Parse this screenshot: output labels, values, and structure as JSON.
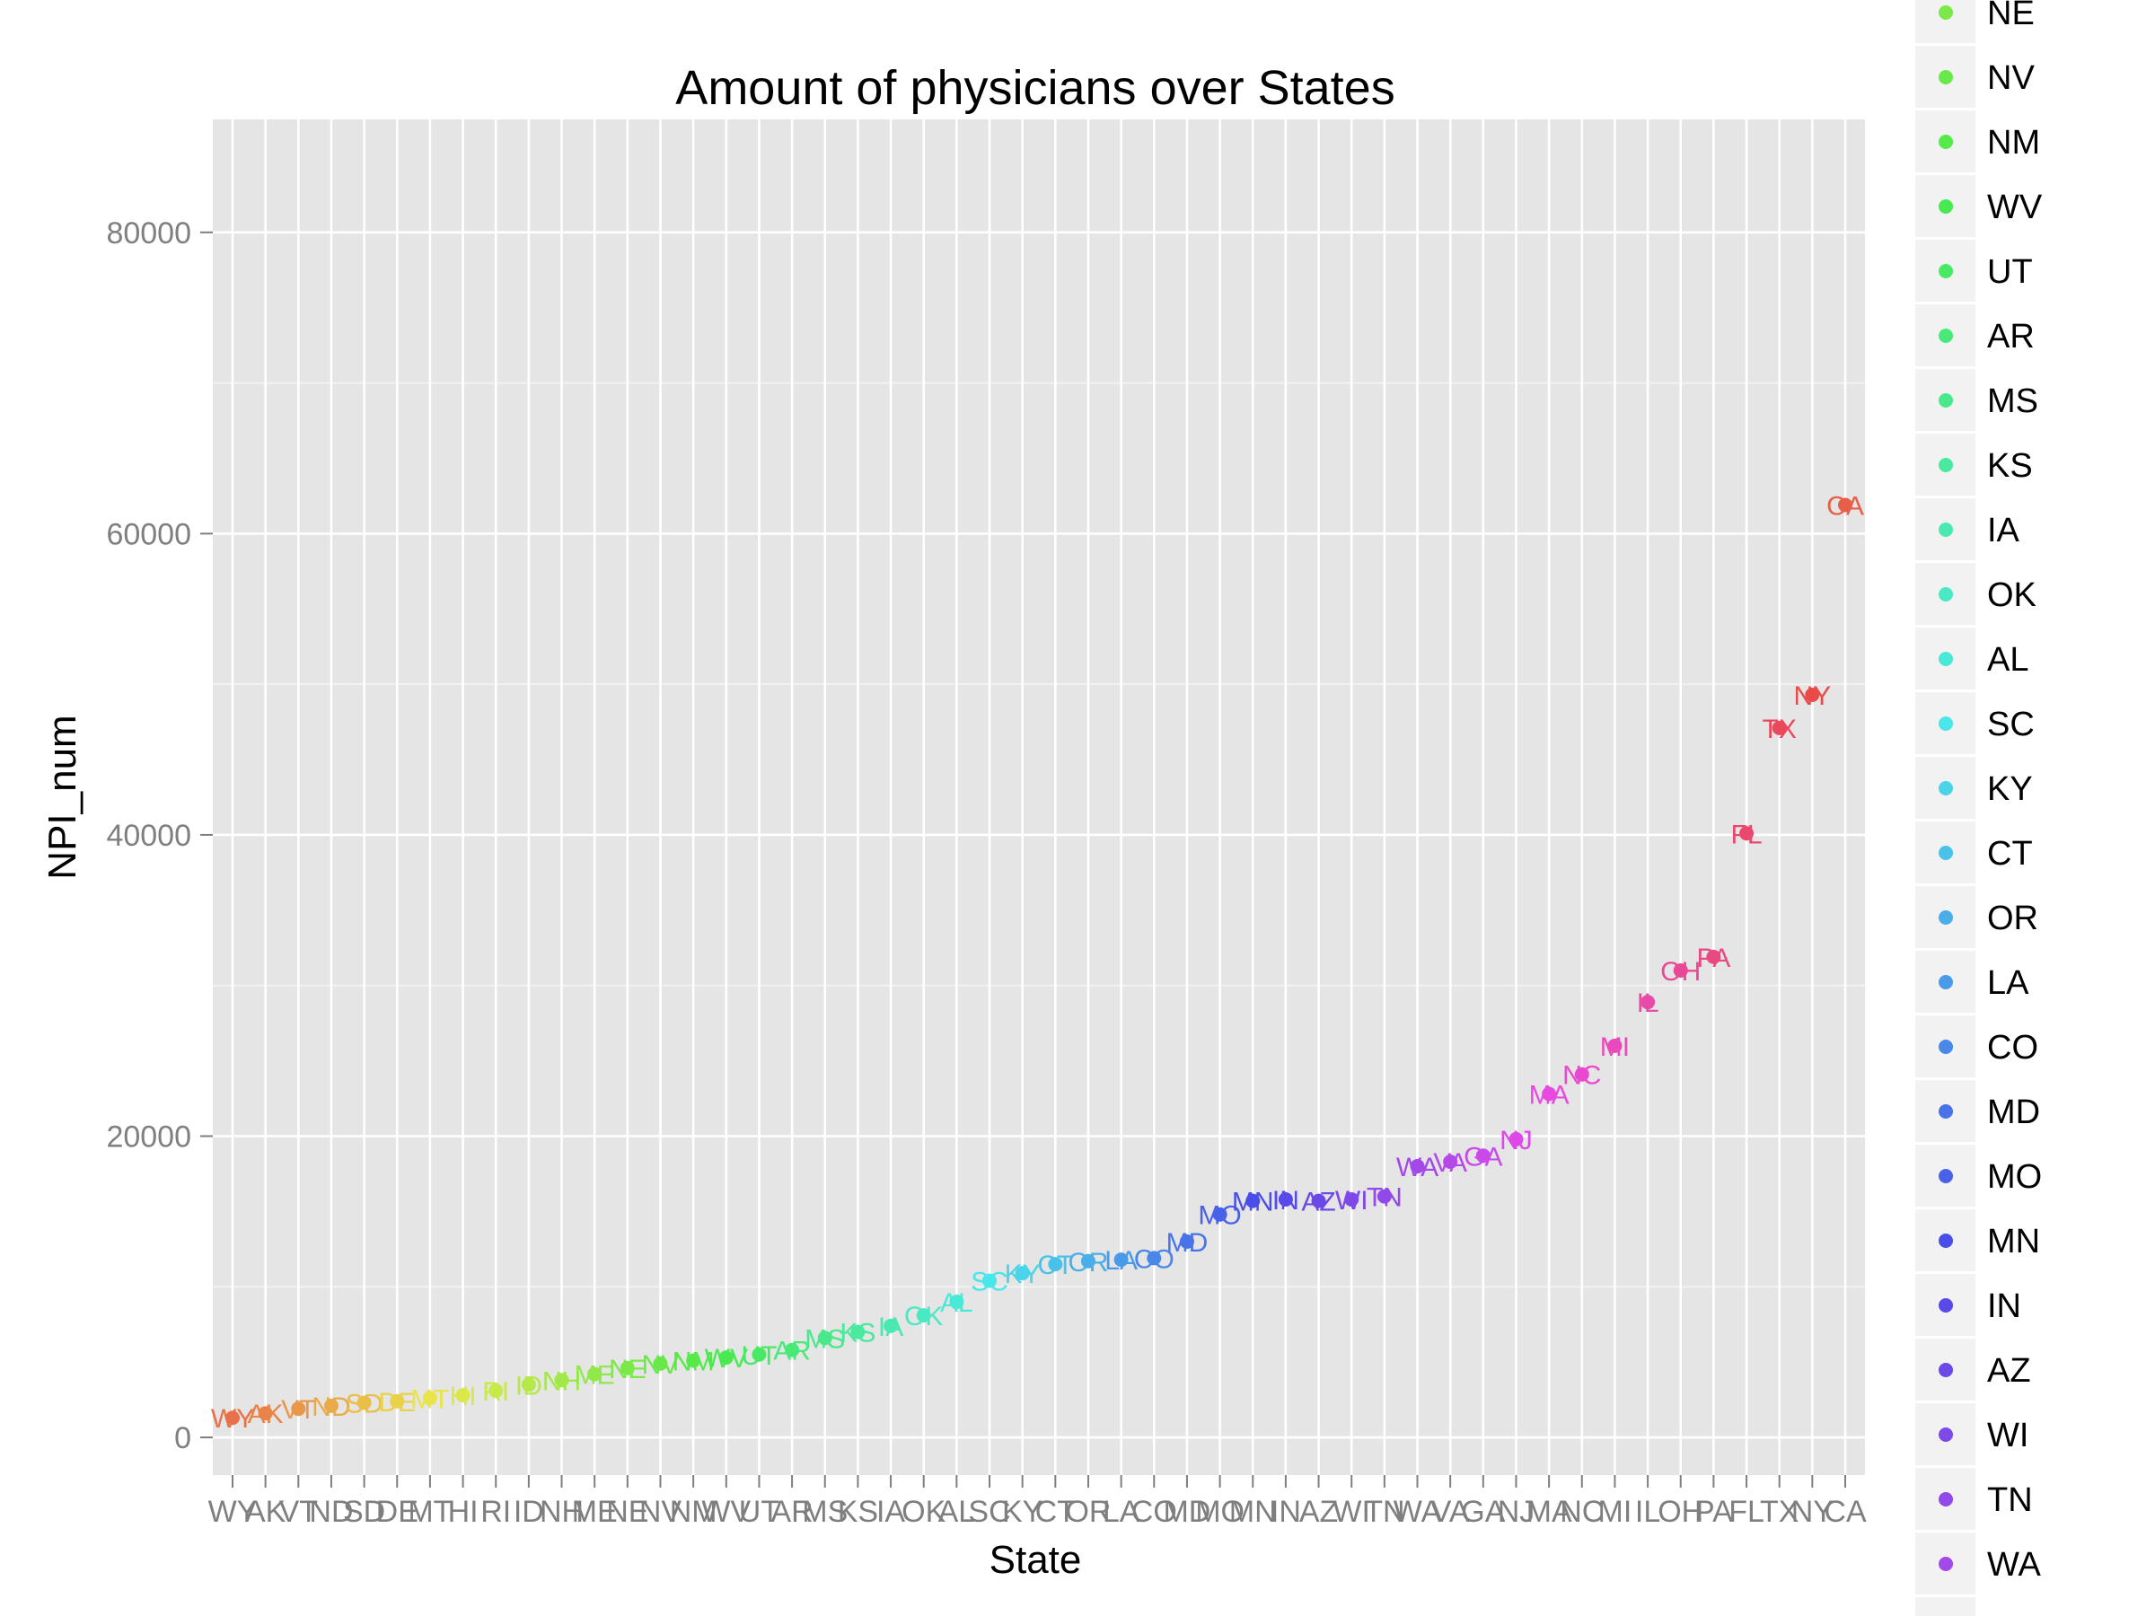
{
  "chart_data": {
    "type": "scatter",
    "title": "Amount of physicians over States",
    "xlabel": "State",
    "ylabel": "NPI_num",
    "ylim": [
      -2500,
      87500
    ],
    "y_ticks": [
      0,
      20000,
      40000,
      60000,
      80000
    ],
    "y_tick_labels": [
      "0",
      "20000",
      "40000",
      "60000",
      "80000"
    ],
    "grid": true,
    "legend_position": "right",
    "categories": [
      "WY",
      "AK",
      "VT",
      "ND",
      "SD",
      "DE",
      "MT",
      "HI",
      "RI",
      "ID",
      "NH",
      "ME",
      "NE",
      "NV",
      "NM",
      "WV",
      "UT",
      "AR",
      "MS",
      "KS",
      "IA",
      "OK",
      "AL",
      "SC",
      "KY",
      "CT",
      "OR",
      "LA",
      "CO",
      "MD",
      "MO",
      "MN",
      "IN",
      "AZ",
      "WI",
      "TN",
      "WA",
      "VA",
      "GA",
      "NJ",
      "MA",
      "NC",
      "MI",
      "IL",
      "OH",
      "PA",
      "FL",
      "TX",
      "NY",
      "CA"
    ],
    "values": [
      1300,
      1600,
      1900,
      2100,
      2300,
      2400,
      2600,
      2800,
      3100,
      3500,
      3800,
      4200,
      4600,
      4900,
      5100,
      5300,
      5500,
      5800,
      6600,
      7000,
      7400,
      8100,
      9000,
      10400,
      10900,
      11500,
      11700,
      11800,
      11900,
      13000,
      14800,
      15700,
      15800,
      15700,
      15800,
      16000,
      18000,
      18300,
      18700,
      19800,
      22800,
      24100,
      26000,
      28900,
      31000,
      31900,
      40100,
      47100,
      49300,
      61900
    ],
    "legend": {
      "entries": [
        "NE",
        "NV",
        "NM",
        "WV",
        "UT",
        "AR",
        "MS",
        "KS",
        "IA",
        "OK",
        "AL",
        "SC",
        "KY",
        "CT",
        "OR",
        "LA",
        "CO",
        "MD",
        "MO",
        "MN",
        "IN",
        "AZ",
        "WI",
        "TN",
        "WA"
      ]
    }
  }
}
